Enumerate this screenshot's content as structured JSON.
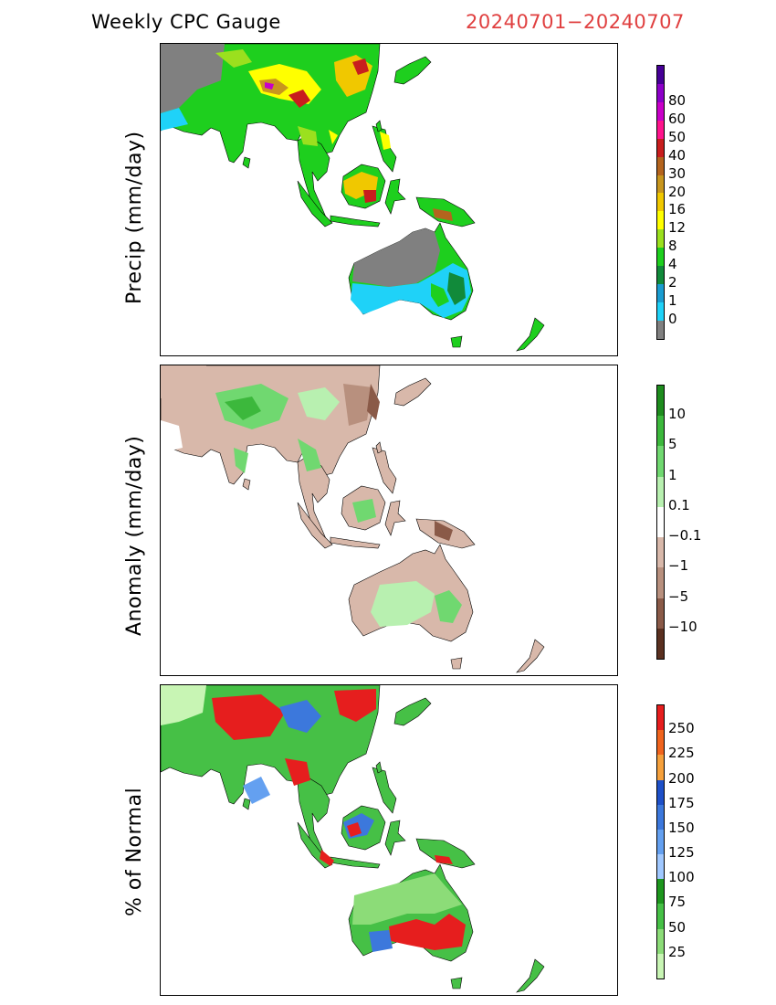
{
  "header": {
    "title": "Weekly CPC Gauge",
    "period": "20240701−20240707"
  },
  "panels": [
    {
      "id": "precip",
      "ylabel": "Precip (mm/day)",
      "colorbar": {
        "colors": [
          "#808080",
          "#1fd2f8",
          "#1a9cd0",
          "#118a3a",
          "#1ecf1e",
          "#9be01e",
          "#ffff00",
          "#f0c800",
          "#c8961e",
          "#b4641e",
          "#c81e1e",
          "#ff148c",
          "#c800c8",
          "#8c00c8",
          "#460096"
        ],
        "ticks": [
          "0",
          "1",
          "2",
          "4",
          "8",
          "12",
          "16",
          "20",
          "30",
          "40",
          "50",
          "60",
          "80"
        ]
      }
    },
    {
      "id": "anomaly",
      "ylabel": "Anomaly (mm/day)",
      "colorbar": {
        "colors": [
          "#5a3020",
          "#8a5a48",
          "#b8907e",
          "#d8b8aa",
          "#ffffff",
          "#b8f0b0",
          "#70d870",
          "#3cb83c",
          "#1e8c1e"
        ],
        "ticks": [
          "−10",
          "−5",
          "−1",
          "−0.1",
          "0.1",
          "1",
          "5",
          "10"
        ]
      }
    },
    {
      "id": "percent",
      "ylabel": "% of Normal",
      "colorbar": {
        "colors": [
          "#c8f5b4",
          "#8cdc78",
          "#46c046",
          "#1e961e",
          "#a0c8ff",
          "#64a0f0",
          "#3c78dc",
          "#1e50c8",
          "#f5a03c",
          "#f0641e",
          "#e61e1e"
        ],
        "ticks": [
          "25",
          "50",
          "75",
          "100",
          "125",
          "150",
          "175",
          "200",
          "225",
          "250"
        ]
      }
    }
  ]
}
